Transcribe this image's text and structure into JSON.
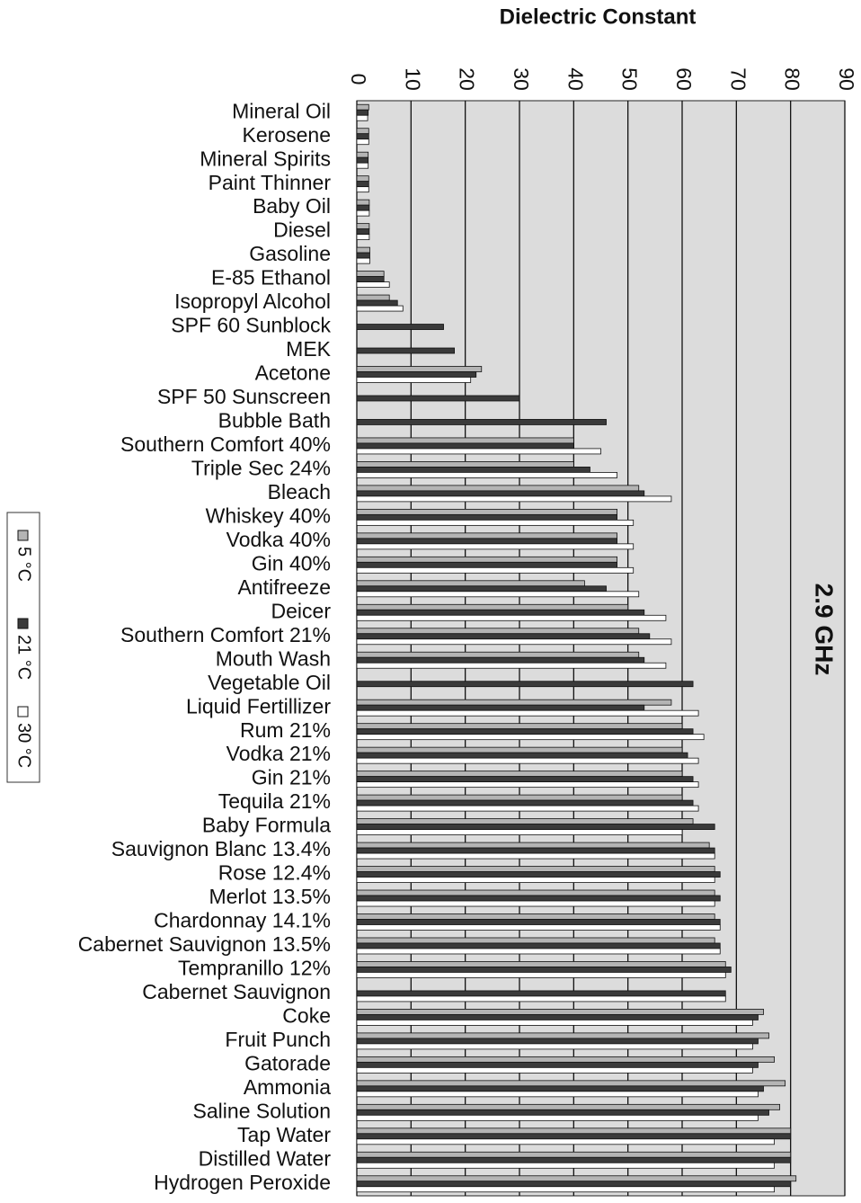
{
  "chart_data": {
    "type": "bar",
    "orientation": "horizontal",
    "title": "Dielectric Constant",
    "annotation": "2.9 GHz",
    "categories": [
      "Mineral Oil",
      "Kerosene",
      "Mineral Spirits",
      "Paint Thinner",
      "Baby Oil",
      "Diesel",
      "Gasoline",
      "E-85 Ethanol",
      "Isopropyl Alcohol",
      "SPF 60 Sunblock",
      "MEK",
      "Acetone",
      "SPF 50 Sunscreen",
      "Bubble Bath",
      "Southern Comfort 40%",
      "Triple Sec 24%",
      "Bleach",
      "Whiskey 40%",
      "Vodka 40%",
      "Gin 40%",
      "Antifreeze",
      "Deicer",
      "Southern Comfort 21%",
      "Mouth Wash",
      "Vegetable Oil",
      "Liquid Fertillizer",
      "Rum 21%",
      "Vodka 21%",
      "Gin 21%",
      "Tequila 21%",
      "Baby Formula",
      "Sauvignon Blanc 13.4%",
      "Rose 12.4%",
      "Merlot 13.5%",
      "Chardonnay 14.1%",
      "Cabernet Sauvignon 13.5%",
      "Tempranillo 12%",
      "Cabernet Sauvignon",
      "Coke",
      "Fruit Punch",
      "Gatorade",
      "Ammonia",
      "Saline Solution",
      "Tap Water",
      "Distilled Water",
      "Hydrogen Peroxide"
    ],
    "series": [
      {
        "name": "5 °C",
        "color": "#b4b4b4",
        "values": [
          2.2,
          2.2,
          2.1,
          2.2,
          2.3,
          2.3,
          2.4,
          5,
          6,
          null,
          null,
          23,
          null,
          null,
          40,
          40,
          52,
          48,
          48,
          48,
          42,
          50,
          52,
          52,
          null,
          58,
          60,
          60,
          60,
          60,
          62,
          65,
          66,
          66,
          66,
          66,
          68,
          null,
          75,
          76,
          77,
          79,
          78,
          80,
          80,
          81
        ]
      },
      {
        "name": "21 °C",
        "color": "#3a3a3a",
        "values": [
          2.1,
          2.2,
          2.1,
          2.2,
          2.3,
          2.3,
          2.4,
          5,
          7.5,
          16,
          18,
          22,
          30,
          46,
          40,
          43,
          53,
          48,
          48,
          48,
          46,
          53,
          54,
          53,
          62,
          53,
          62,
          61,
          62,
          62,
          66,
          66,
          67,
          67,
          67,
          67,
          69,
          68,
          74,
          74,
          74,
          75,
          76,
          80,
          80,
          80
        ]
      },
      {
        "name": "30 °C",
        "color": "#ffffff",
        "values": [
          2.0,
          2.2,
          2.1,
          2.2,
          2.3,
          2.3,
          2.4,
          6,
          8.5,
          null,
          null,
          21,
          null,
          null,
          45,
          48,
          58,
          51,
          51,
          51,
          52,
          57,
          58,
          57,
          null,
          63,
          64,
          63,
          63,
          63,
          60,
          66,
          66,
          66,
          67,
          67,
          68,
          68,
          73,
          73,
          73,
          74,
          74,
          77,
          77,
          77
        ]
      }
    ],
    "xlim": [
      0,
      90
    ],
    "xticks": [
      0,
      10,
      20,
      30,
      40,
      50,
      60,
      70,
      80,
      90
    ],
    "grid": true,
    "legend": "left"
  }
}
